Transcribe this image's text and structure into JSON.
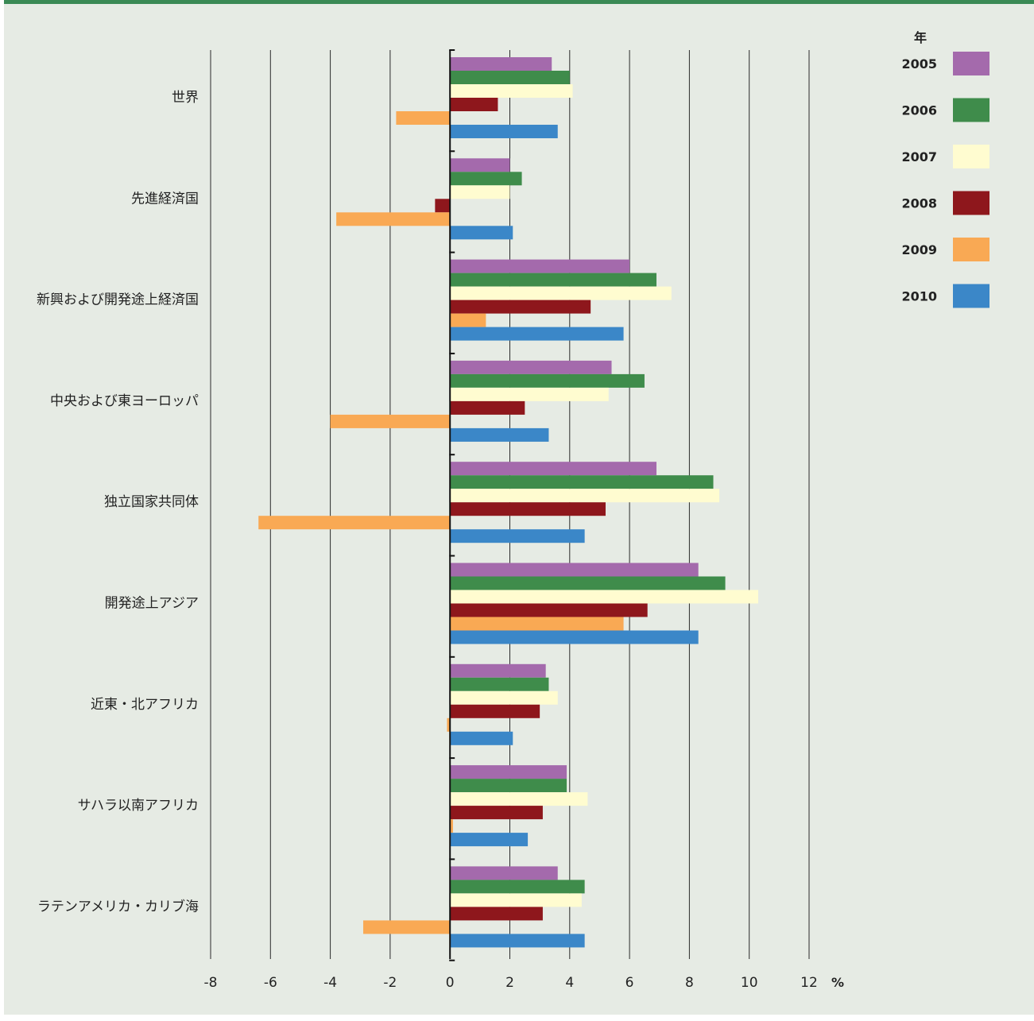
{
  "chart_data": {
    "type": "bar",
    "orientation": "horizontal",
    "categories": [
      "世界",
      "先進経済国",
      "新興および開発途上経済国",
      "中央および東ヨーロッパ",
      "独立国家共同体",
      "開発途上アジア",
      "近東・北アフリカ",
      "サハラ以南アフリカ",
      "ラテンアメリカ・カリブ海"
    ],
    "legend_title": "年",
    "legend_position": "top-right",
    "series": [
      {
        "name": "2005",
        "color": "#a46aac",
        "values": [
          3.4,
          2.0,
          6.0,
          5.4,
          6.9,
          8.3,
          3.2,
          3.9,
          3.6
        ]
      },
      {
        "name": "2006",
        "color": "#3f8c4b",
        "values": [
          4.0,
          2.4,
          6.9,
          6.5,
          8.8,
          9.2,
          3.3,
          3.9,
          4.5
        ]
      },
      {
        "name": "2007",
        "color": "#fffcd0",
        "values": [
          4.1,
          2.0,
          7.4,
          5.3,
          9.0,
          10.3,
          3.6,
          4.6,
          4.4
        ]
      },
      {
        "name": "2008",
        "color": "#8e171c",
        "values": [
          1.6,
          -0.5,
          4.7,
          2.5,
          5.2,
          6.6,
          3.0,
          3.1,
          3.1
        ]
      },
      {
        "name": "2009",
        "color": "#f9a954",
        "values": [
          -1.8,
          -3.8,
          1.2,
          -4.0,
          -6.4,
          5.8,
          -0.1,
          0.1,
          -2.9
        ]
      },
      {
        "name": "2010",
        "color": "#3b87c8",
        "values": [
          3.6,
          2.1,
          5.8,
          3.3,
          4.5,
          8.3,
          2.1,
          2.6,
          4.5
        ]
      }
    ],
    "xlim": [
      -8,
      12
    ],
    "xticks": [
      "-8",
      "-6",
      "-4",
      "-2",
      "0",
      "2",
      "4",
      "6",
      "8",
      "10",
      "12"
    ],
    "xunit": "%",
    "grid": true
  }
}
